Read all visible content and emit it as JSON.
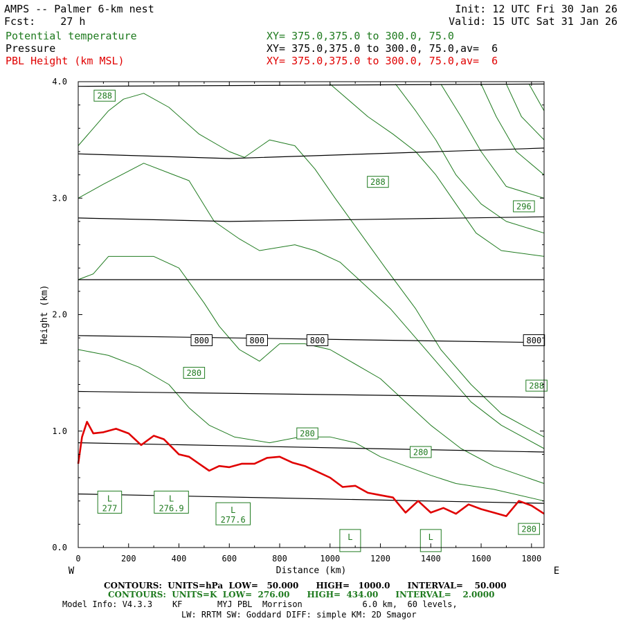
{
  "header": {
    "title_left": "AMPS -- Palmer 6-km nest",
    "fcst": "Fcst:    27 h",
    "init": "Init: 12 UTC Fri 30 Jan 26",
    "valid": "Valid: 15 UTC Sat 31 Jan 26",
    "legend": [
      {
        "label": "Potential temperature",
        "xy": "XY= 375.0,375.0 to 300.0, 75.0",
        "color": "#1e7a1e"
      },
      {
        "label": "Pressure",
        "xy": "XY= 375.0,375.0 to 300.0, 75.0,av=  6",
        "color": "#000000"
      },
      {
        "label": "PBL Height (km MSL)",
        "xy": "XY= 375.0,375.0 to 300.0, 75.0,av=  6",
        "color": "#e00000"
      }
    ]
  },
  "footer": {
    "line1": "CONTOURS:  UNITS=hPa  LOW=   50.000      HIGH=   1000.0      INTERVAL=    50.000",
    "line2": "CONTOURS:  UNITS=K  LOW=  276.00      HIGH=  434.00      INTERVAL=    2.0000",
    "line3": "Model Info: V4.3.3    KF       MYJ PBL  Morrison            6.0 km,  60 levels,",
    "line4": "LW: RRTM SW: Goddard DIFF: simple KM: 2D Smagor"
  },
  "chart_data": {
    "type": "line",
    "xlabel": "Distance (km)",
    "ylabel": "Height (km)",
    "xlim": [
      0,
      1850
    ],
    "ylim": [
      0,
      4.0
    ],
    "x_ticks": [
      0,
      200,
      400,
      600,
      800,
      1000,
      1200,
      1400,
      1600,
      1800
    ],
    "y_ticks": [
      0,
      1.0,
      2.0,
      3.0,
      4.0
    ],
    "y_tick_labels": [
      "0.0",
      "1.0",
      "2.0",
      "3.0",
      "4.0"
    ],
    "x_end_labels": {
      "left": "W",
      "right": "E"
    },
    "pbl_height": {
      "color": "#e00000",
      "points": [
        [
          0,
          0.72
        ],
        [
          15,
          0.95
        ],
        [
          35,
          1.08
        ],
        [
          60,
          0.98
        ],
        [
          100,
          0.99
        ],
        [
          150,
          1.02
        ],
        [
          200,
          0.98
        ],
        [
          250,
          0.88
        ],
        [
          300,
          0.96
        ],
        [
          340,
          0.93
        ],
        [
          400,
          0.8
        ],
        [
          440,
          0.78
        ],
        [
          480,
          0.72
        ],
        [
          520,
          0.66
        ],
        [
          560,
          0.7
        ],
        [
          600,
          0.69
        ],
        [
          650,
          0.72
        ],
        [
          700,
          0.72
        ],
        [
          750,
          0.77
        ],
        [
          800,
          0.78
        ],
        [
          850,
          0.73
        ],
        [
          900,
          0.7
        ],
        [
          950,
          0.65
        ],
        [
          1000,
          0.6
        ],
        [
          1050,
          0.52
        ],
        [
          1100,
          0.53
        ],
        [
          1150,
          0.47
        ],
        [
          1200,
          0.45
        ],
        [
          1250,
          0.43
        ],
        [
          1300,
          0.3
        ],
        [
          1350,
          0.4
        ],
        [
          1400,
          0.3
        ],
        [
          1450,
          0.34
        ],
        [
          1500,
          0.29
        ],
        [
          1550,
          0.37
        ],
        [
          1600,
          0.33
        ],
        [
          1650,
          0.3
        ],
        [
          1700,
          0.27
        ],
        [
          1750,
          0.4
        ],
        [
          1800,
          0.36
        ],
        [
          1850,
          0.29
        ]
      ]
    },
    "pressure": {
      "color": "#000000",
      "contours": [
        {
          "points": [
            [
              0,
              0.46
            ],
            [
              1850,
              0.38
            ]
          ]
        },
        {
          "points": [
            [
              0,
              0.9
            ],
            [
              1850,
              0.82
            ]
          ]
        },
        {
          "points": [
            [
              0,
              1.34
            ],
            [
              1850,
              1.29
            ]
          ]
        },
        {
          "points": [
            [
              0,
              1.82
            ],
            [
              1850,
              1.76
            ]
          ]
        },
        {
          "points": [
            [
              0,
              2.3
            ],
            [
              1850,
              2.3
            ]
          ]
        },
        {
          "points": [
            [
              0,
              2.83
            ],
            [
              600,
              2.8
            ],
            [
              1850,
              2.84
            ]
          ]
        },
        {
          "points": [
            [
              0,
              3.38
            ],
            [
              600,
              3.34
            ],
            [
              1850,
              3.43
            ]
          ]
        },
        {
          "points": [
            [
              0,
              3.96
            ],
            [
              1850,
              3.98
            ]
          ]
        }
      ],
      "labels": [
        {
          "x": 490,
          "y": 1.78,
          "text": "800"
        },
        {
          "x": 710,
          "y": 1.78,
          "text": "800"
        },
        {
          "x": 950,
          "y": 1.78,
          "text": "800"
        },
        {
          "x": 1810,
          "y": 1.78,
          "text": "800"
        }
      ]
    },
    "potential_temperature": {
      "color": "#1e7a1e",
      "contours": [
        {
          "points": [
            [
              0,
              3.45
            ],
            [
              120,
              3.75
            ],
            [
              180,
              3.85
            ],
            [
              260,
              3.9
            ],
            [
              360,
              3.78
            ],
            [
              480,
              3.55
            ],
            [
              600,
              3.4
            ],
            [
              660,
              3.35
            ],
            [
              760,
              3.5
            ],
            [
              860,
              3.45
            ],
            [
              940,
              3.25
            ],
            [
              1020,
              3.0
            ],
            [
              1120,
              2.7
            ],
            [
              1220,
              2.4
            ],
            [
              1340,
              2.05
            ],
            [
              1440,
              1.7
            ],
            [
              1560,
              1.4
            ],
            [
              1680,
              1.15
            ],
            [
              1850,
              0.95
            ]
          ]
        },
        {
          "points": [
            [
              0,
              3.0
            ],
            [
              100,
              3.12
            ],
            [
              260,
              3.3
            ],
            [
              380,
              3.2
            ],
            [
              440,
              3.15
            ],
            [
              540,
              2.8
            ],
            [
              640,
              2.65
            ],
            [
              720,
              2.55
            ],
            [
              860,
              2.6
            ],
            [
              940,
              2.55
            ],
            [
              1040,
              2.45
            ],
            [
              1140,
              2.25
            ],
            [
              1240,
              2.05
            ],
            [
              1340,
              1.8
            ],
            [
              1440,
              1.55
            ],
            [
              1560,
              1.25
            ],
            [
              1680,
              1.05
            ],
            [
              1850,
              0.85
            ]
          ]
        },
        {
          "points": [
            [
              0,
              2.3
            ],
            [
              60,
              2.35
            ],
            [
              120,
              2.5
            ],
            [
              300,
              2.5
            ],
            [
              400,
              2.4
            ],
            [
              500,
              2.1
            ],
            [
              560,
              1.9
            ],
            [
              640,
              1.7
            ],
            [
              720,
              1.6
            ],
            [
              800,
              1.75
            ],
            [
              900,
              1.75
            ],
            [
              1000,
              1.7
            ],
            [
              1080,
              1.6
            ],
            [
              1200,
              1.45
            ],
            [
              1300,
              1.25
            ],
            [
              1400,
              1.05
            ],
            [
              1520,
              0.85
            ],
            [
              1650,
              0.7
            ],
            [
              1850,
              0.55
            ]
          ]
        },
        {
          "points": [
            [
              0,
              1.7
            ],
            [
              120,
              1.65
            ],
            [
              240,
              1.55
            ],
            [
              360,
              1.4
            ],
            [
              440,
              1.2
            ],
            [
              520,
              1.05
            ],
            [
              620,
              0.95
            ],
            [
              760,
              0.9
            ],
            [
              880,
              0.95
            ],
            [
              1000,
              0.95
            ],
            [
              1100,
              0.9
            ],
            [
              1200,
              0.78
            ],
            [
              1300,
              0.7
            ],
            [
              1400,
              0.62
            ],
            [
              1500,
              0.55
            ],
            [
              1650,
              0.5
            ],
            [
              1850,
              0.4
            ]
          ]
        },
        {
          "points": [
            [
              1000,
              3.98
            ],
            [
              1150,
              3.7
            ],
            [
              1250,
              3.55
            ],
            [
              1340,
              3.4
            ],
            [
              1420,
              3.2
            ],
            [
              1500,
              2.95
            ],
            [
              1580,
              2.7
            ],
            [
              1680,
              2.55
            ],
            [
              1850,
              2.5
            ]
          ]
        },
        {
          "points": [
            [
              1260,
              3.98
            ],
            [
              1340,
              3.75
            ],
            [
              1420,
              3.5
            ],
            [
              1500,
              3.2
            ],
            [
              1600,
              2.95
            ],
            [
              1700,
              2.8
            ],
            [
              1850,
              2.7
            ]
          ]
        },
        {
          "points": [
            [
              1440,
              3.98
            ],
            [
              1520,
              3.7
            ],
            [
              1600,
              3.4
            ],
            [
              1700,
              3.1
            ],
            [
              1850,
              3.0
            ]
          ]
        },
        {
          "points": [
            [
              1600,
              3.98
            ],
            [
              1660,
              3.7
            ],
            [
              1740,
              3.4
            ],
            [
              1850,
              3.2
            ]
          ]
        },
        {
          "points": [
            [
              1700,
              3.98
            ],
            [
              1760,
              3.7
            ],
            [
              1850,
              3.5
            ]
          ]
        },
        {
          "points": [
            [
              1790,
              3.98
            ],
            [
              1850,
              3.75
            ]
          ]
        }
      ],
      "labels": [
        {
          "x": 105,
          "y": 3.88,
          "text": "288"
        },
        {
          "x": 1190,
          "y": 3.14,
          "text": "288"
        },
        {
          "x": 1770,
          "y": 2.93,
          "text": "296"
        },
        {
          "x": 460,
          "y": 1.5,
          "text": "280"
        },
        {
          "x": 1820,
          "y": 1.39,
          "text": "288"
        },
        {
          "x": 910,
          "y": 0.98,
          "text": "280"
        },
        {
          "x": 1360,
          "y": 0.82,
          "text": "280"
        },
        {
          "x": 1790,
          "y": 0.16,
          "text": "280"
        }
      ],
      "lows": [
        {
          "x": 125,
          "y": 0.39,
          "value": "277"
        },
        {
          "x": 370,
          "y": 0.39,
          "value": "276.9"
        },
        {
          "x": 615,
          "y": 0.29,
          "value": "277.6"
        },
        {
          "x": 1080,
          "y": 0.06,
          "value": ""
        },
        {
          "x": 1400,
          "y": 0.06,
          "value": ""
        }
      ]
    }
  }
}
